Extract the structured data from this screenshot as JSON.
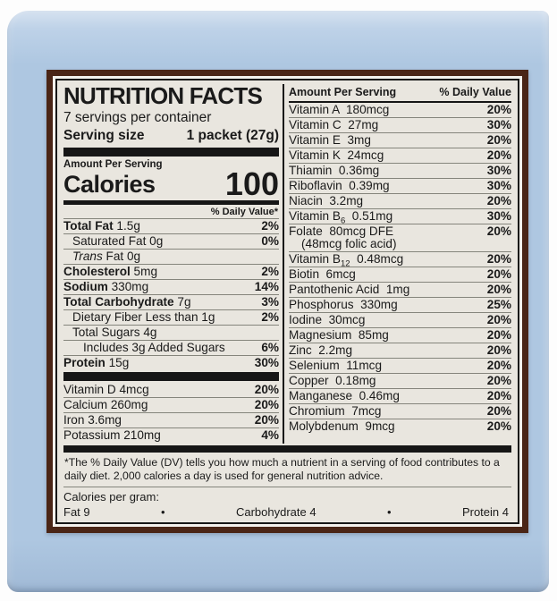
{
  "colors": {
    "package_blue": "#aec7e1",
    "frame_brown": "#4a2516",
    "label_background": "#e9e6df"
  },
  "label": {
    "title": "NUTRITION FACTS",
    "servings_per_container": "7 servings per container",
    "serving_size_label": "Serving size",
    "serving_size_value": "1 packet (27g)",
    "amount_per_serving": "Amount Per Serving",
    "calories_label": "Calories",
    "calories_value": "100",
    "daily_value_note": "% Daily Value*",
    "main_rows": [
      {
        "bold": "Total Fat",
        "rest": " 1.5g",
        "value": "2%",
        "indent": 0
      },
      {
        "rest": "Saturated Fat 0g",
        "value": "0%",
        "indent": 1
      },
      {
        "italic": "Trans",
        "rest": " Fat 0g",
        "value": "",
        "indent": 1
      },
      {
        "bold": "Cholesterol",
        "rest": " 5mg",
        "value": "2%",
        "indent": 0
      },
      {
        "bold": "Sodium",
        "rest": " 330mg",
        "value": "14%",
        "indent": 0
      },
      {
        "bold": "Total Carbohydrate",
        "rest": " 7g",
        "value": "3%",
        "indent": 0
      },
      {
        "rest": "Dietary Fiber Less than 1g",
        "value": "2%",
        "indent": 1
      },
      {
        "rest": "Total Sugars 4g",
        "value": "",
        "indent": 1
      },
      {
        "rest": "Includes 3g Added Sugars",
        "value": "6%",
        "indent": 2
      },
      {
        "bold": "Protein",
        "rest": " 15g",
        "value": "30%",
        "indent": 0
      }
    ],
    "left_vitamin_rows": [
      {
        "rest": "Vitamin D 4mcg",
        "value": "20%"
      },
      {
        "rest": "Calcium 260mg",
        "value": "20%"
      },
      {
        "rest": "Iron 3.6mg",
        "value": "20%"
      },
      {
        "rest": "Potassium 210mg",
        "value": "4%"
      }
    ],
    "right_header": {
      "amount": "Amount Per Serving",
      "dv": "% Daily Value"
    },
    "right_rows": [
      {
        "rest": "Vitamin A  180mcg",
        "value": "20%"
      },
      {
        "rest": "Vitamin C  27mg",
        "value": "30%"
      },
      {
        "rest": "Vitamin E  3mg",
        "value": "20%"
      },
      {
        "rest": "Vitamin K  24mcg",
        "value": "20%"
      },
      {
        "rest": "Thiamin  0.36mg",
        "value": "30%"
      },
      {
        "rest": "Riboflavin  0.39mg",
        "value": "30%"
      },
      {
        "rest": "Niacin  3.2mg",
        "value": "20%"
      },
      {
        "pre": "Vitamin B",
        "sub": "6",
        "rest": "  0.51mg",
        "value": "30%"
      },
      {
        "rest": "Folate  80mcg DFE",
        "value": "20%",
        "line2": "(48mcg folic acid)"
      },
      {
        "pre": "Vitamin B",
        "sub": "12",
        "rest": "  0.48mcg",
        "value": "20%"
      },
      {
        "rest": "Biotin  6mcg",
        "value": "20%"
      },
      {
        "rest": "Pantothenic Acid  1mg",
        "value": "20%"
      },
      {
        "rest": "Phosphorus  330mg",
        "value": "25%"
      },
      {
        "rest": "Iodine  30mcg",
        "value": "20%"
      },
      {
        "rest": "Magnesium  85mg",
        "value": "20%"
      },
      {
        "rest": "Zinc  2.2mg",
        "value": "20%"
      },
      {
        "rest": "Selenium  11mcg",
        "value": "20%"
      },
      {
        "rest": "Copper  0.18mg",
        "value": "20%"
      },
      {
        "rest": "Manganese  0.46mg",
        "value": "20%"
      },
      {
        "rest": "Chromium  7mcg",
        "value": "20%"
      },
      {
        "rest": "Molybdenum  9mcg",
        "value": "20%"
      }
    ],
    "footnote": "*The % Daily Value (DV) tells you how much a nutrient in a serving of food contributes to a daily diet. 2,000 calories a day is used for general nutrition advice.",
    "calories_per_gram": {
      "label": "Calories per gram:",
      "fat": "Fat 9",
      "carb": "Carbohydrate 4",
      "protein": "Protein 4",
      "bullet": "•"
    }
  }
}
